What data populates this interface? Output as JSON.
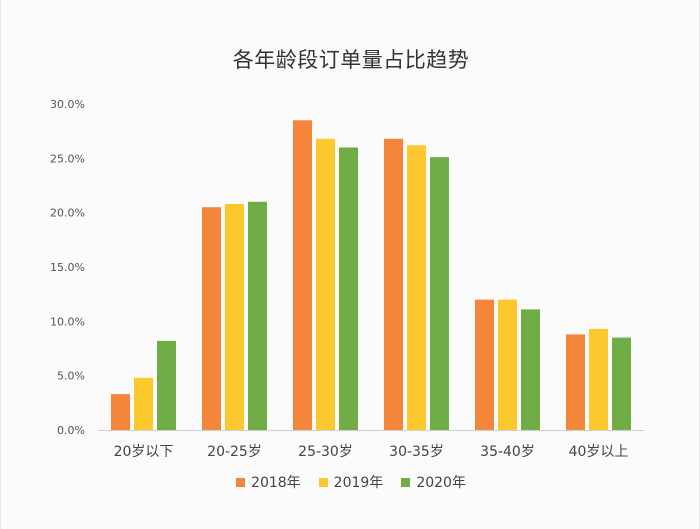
{
  "chart_data": {
    "type": "bar",
    "title": "各年龄段订单量占比趋势",
    "xlabel": "",
    "ylabel": "",
    "ylim": [
      0,
      30
    ],
    "yticks": [
      "0.0%",
      "5.0%",
      "10.0%",
      "15.0%",
      "20.0%",
      "25.0%",
      "30.0%"
    ],
    "ytick_values": [
      0,
      5,
      10,
      15,
      20,
      25,
      30
    ],
    "grid": false,
    "legend_position": "bottom",
    "categories": [
      "20岁以下",
      "20-25岁",
      "25-30岁",
      "30-35岁",
      "35-40岁",
      "40岁以上"
    ],
    "series": [
      {
        "name": "2018年",
        "color": "#f3863a",
        "values": [
          3.3,
          20.5,
          28.5,
          26.8,
          12.0,
          8.8
        ]
      },
      {
        "name": "2019年",
        "color": "#fdc82e",
        "values": [
          4.8,
          20.8,
          26.8,
          26.2,
          12.0,
          9.3
        ]
      },
      {
        "name": "2020年",
        "color": "#70ad47",
        "values": [
          8.2,
          21.0,
          26.0,
          25.1,
          11.1,
          8.5
        ]
      }
    ]
  }
}
